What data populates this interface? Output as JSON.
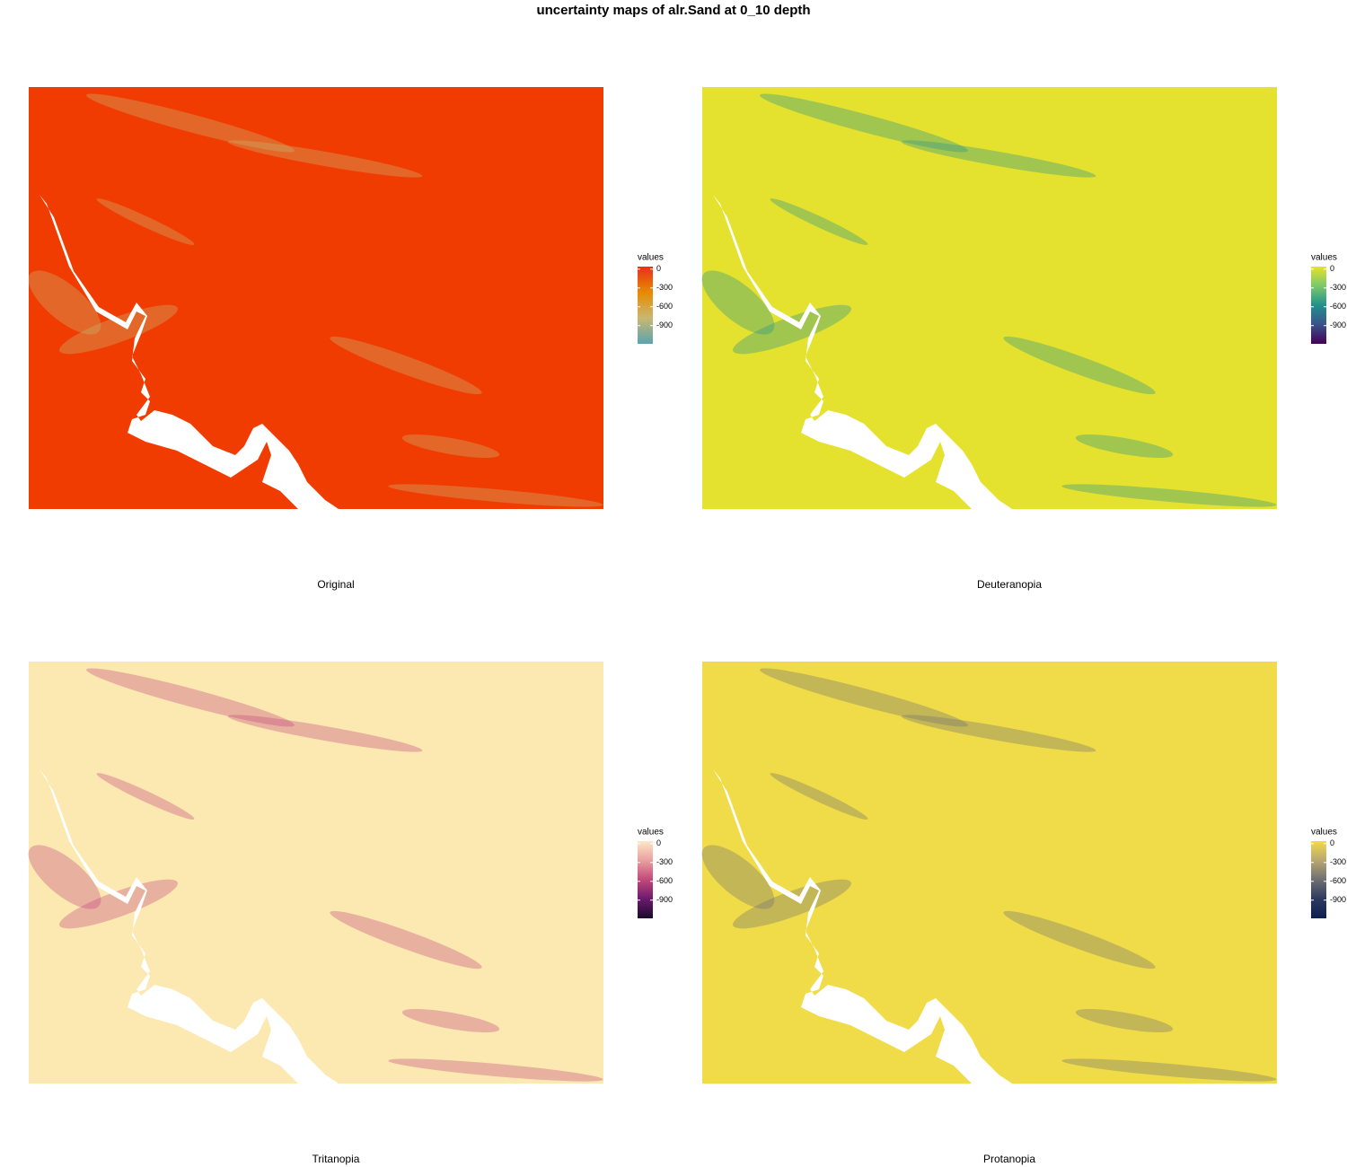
{
  "title": "uncertainty maps of alr.Sand at 0_10 depth",
  "panels": [
    {
      "caption": "Original",
      "fill": "#f03c00",
      "legend": {
        "title": "values",
        "lim": [
          -1190,
          40
        ],
        "ticks": [
          0,
          -300,
          -600,
          -900
        ],
        "colors": [
          "#e8301b",
          "#e88a00",
          "#c9b872",
          "#5ba3b0"
        ]
      }
    },
    {
      "caption": "Deuteranopia",
      "fill": "#e4e22f",
      "legend": {
        "title": "values",
        "lim": [
          -1190,
          40
        ],
        "ticks": [
          0,
          -300,
          -600,
          -900
        ],
        "colors": [
          "#e6e22e",
          "#7cc86a",
          "#21918c",
          "#3b528b",
          "#440154"
        ]
      }
    },
    {
      "caption": "Tritanopia",
      "fill": "#fce9b2",
      "legend": {
        "title": "values",
        "lim": [
          -1190,
          40
        ],
        "ticks": [
          0,
          -300,
          -600,
          -900
        ],
        "colors": [
          "#fde7c8",
          "#e8a0a0",
          "#c2487a",
          "#6b1a6e",
          "#1a0a2a"
        ]
      }
    },
    {
      "caption": "Protanopia",
      "fill": "#f0dc48",
      "legend": {
        "title": "values",
        "lim": [
          -1190,
          40
        ],
        "ticks": [
          0,
          -300,
          -600,
          -900
        ],
        "colors": [
          "#f2d94a",
          "#b8a870",
          "#6f6f72",
          "#2c3a5e",
          "#0d1f50"
        ]
      }
    }
  ]
}
